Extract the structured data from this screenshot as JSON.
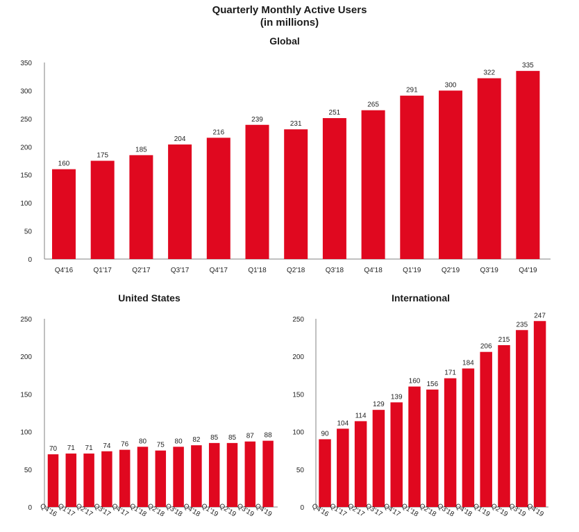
{
  "title_line1": "Quarterly Monthly Active Users",
  "title_line2": "(in millions)",
  "colors": {
    "bar": "#E0081F"
  },
  "chart_data": [
    {
      "type": "bar",
      "title": "Global",
      "categories": [
        "Q4'16",
        "Q1'17",
        "Q2'17",
        "Q3'17",
        "Q4'17",
        "Q1'18",
        "Q2'18",
        "Q3'18",
        "Q4'18",
        "Q1'19",
        "Q2'19",
        "Q3'19",
        "Q4'19"
      ],
      "values": [
        160,
        175,
        185,
        204,
        216,
        239,
        231,
        251,
        265,
        291,
        300,
        322,
        335
      ],
      "ylim": [
        0,
        350
      ],
      "yticks": [
        0,
        50,
        100,
        150,
        200,
        250,
        300,
        350
      ],
      "xlabel": "",
      "ylabel": ""
    },
    {
      "type": "bar",
      "title": "United States",
      "categories": [
        "Q4'16",
        "Q1'17",
        "Q2'17",
        "Q3'17",
        "Q4'17",
        "Q1'18",
        "Q2'18",
        "Q3'18",
        "Q4'18",
        "Q1'19",
        "Q2'19",
        "Q3'19",
        "Q4'19"
      ],
      "values": [
        70,
        71,
        71,
        74,
        76,
        80,
        75,
        80,
        82,
        85,
        85,
        87,
        88
      ],
      "ylim": [
        0,
        250
      ],
      "yticks": [
        0,
        50,
        100,
        150,
        200,
        250
      ],
      "xlabel": "",
      "ylabel": ""
    },
    {
      "type": "bar",
      "title": "International",
      "categories": [
        "Q4'16",
        "Q1'17",
        "Q2'17",
        "Q3'17",
        "Q4'17",
        "Q1'18",
        "Q2'18",
        "Q3'18",
        "Q4'18",
        "Q1'19",
        "Q2'19",
        "Q3'19",
        "Q4'19"
      ],
      "values": [
        90,
        104,
        114,
        129,
        139,
        160,
        156,
        171,
        184,
        206,
        215,
        235,
        247
      ],
      "ylim": [
        0,
        250
      ],
      "yticks": [
        0,
        50,
        100,
        150,
        200,
        250
      ],
      "xlabel": "",
      "ylabel": ""
    }
  ]
}
